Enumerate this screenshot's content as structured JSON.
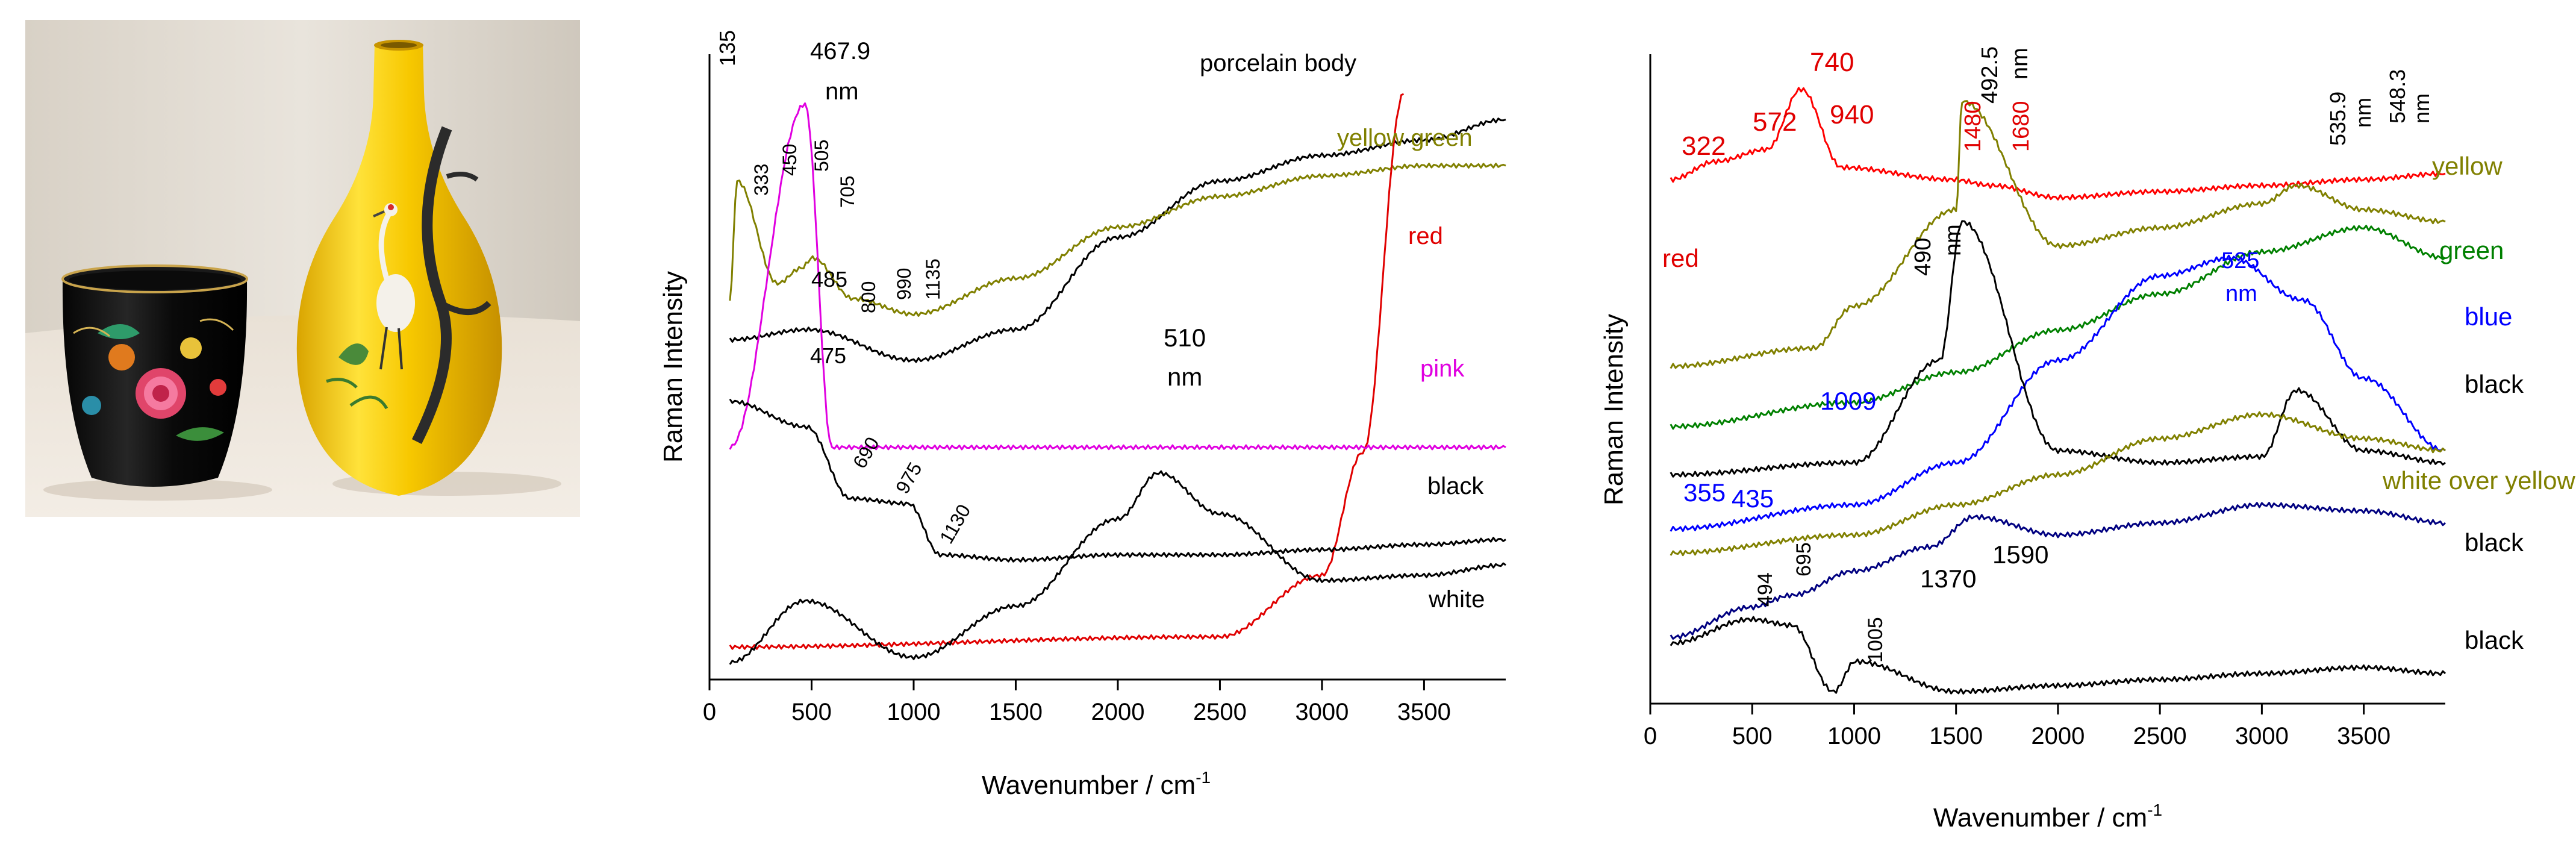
{
  "photo": {
    "description_label": "Photograph of a black enamel cup and a yellow porcelain vase"
  },
  "charts": {
    "left": {
      "ylabel": "Raman Intensity",
      "xlabel": "Wavenumber / cm",
      "xlabel_sup": "-1",
      "ticks": [
        "0",
        "500",
        "1000",
        "1500",
        "2000",
        "2500",
        "3000",
        "3500"
      ],
      "series_labels": {
        "porcelain": "porcelain body",
        "yellowgreen": "yellow green",
        "red": "red",
        "pink": "pink",
        "black": "black",
        "white": "white"
      },
      "peak_labels": {
        "p135": "135",
        "p467": "467.9",
        "p467nm": "nm",
        "p333": "333",
        "p450": "450",
        "p505": "505",
        "p705": "705",
        "p485": "485",
        "p800": "800",
        "p990": "990",
        "p1135": "1135",
        "p510": "510",
        "p510nm": "nm",
        "p475": "475",
        "p690": "690",
        "p975": "975",
        "p1130": "1130"
      }
    },
    "right": {
      "ylabel": "Raman Intensity",
      "xlabel": "Wavenumber / cm",
      "xlabel_sup": "-1",
      "ticks": [
        "0",
        "500",
        "1000",
        "1500",
        "2000",
        "2500",
        "3000",
        "3500"
      ],
      "series_labels": {
        "red": "red",
        "yellow": "yellow",
        "green": "green",
        "blue": "blue",
        "black1": "black",
        "wy": "white over yellow",
        "black2": "black",
        "black3": "black"
      },
      "peak_labels": {
        "p740": "740",
        "p322": "322",
        "p572": "572",
        "p940": "940",
        "p1480": "1480",
        "p1680": "1680",
        "p4925": "492.5",
        "p4925nm": "nm",
        "p5359": "535.9",
        "p5359nm": "nm",
        "p5483": "548.3",
        "p5483nm": "nm",
        "p490": "490",
        "p490nm": "nm",
        "p525": "525",
        "p525nm": "nm",
        "p1009": "1009",
        "p355": "355",
        "p435": "435",
        "p494": "494",
        "p695": "695",
        "p1370": "1370",
        "p1590": "1590",
        "p1005": "1005"
      }
    }
  },
  "chart_data": [
    {
      "type": "line",
      "title": "",
      "xlabel": "Wavenumber / cm-1",
      "ylabel": "Raman Intensity",
      "xlim": [
        0,
        3900
      ],
      "grid": false,
      "series": [
        {
          "name": "porcelain body",
          "color": "#000000",
          "x": [
            100,
            485,
            1000,
            1500,
            2000,
            2500,
            3000,
            3500,
            3900
          ],
          "values": [
            0.64,
            0.66,
            0.6,
            0.66,
            0.84,
            0.95,
            1.0,
            1.03,
            1.07
          ]
        },
        {
          "name": "yellow green",
          "color": "#808000",
          "x": [
            100,
            135,
            333,
            450,
            505,
            705,
            1000,
            1500,
            2000,
            2500,
            3000,
            3500,
            3900
          ],
          "values": [
            0.72,
            0.95,
            0.75,
            0.78,
            0.8,
            0.72,
            0.69,
            0.76,
            0.86,
            0.92,
            0.96,
            0.98,
            0.98
          ]
        },
        {
          "name": "red",
          "color": "#e00000",
          "x": [
            100,
            2500,
            3000,
            3200,
            3400
          ],
          "values": [
            0.04,
            0.06,
            0.18,
            0.42,
            1.12
          ]
        },
        {
          "name": "pink",
          "color": "#e000e0",
          "x": [
            100,
            467.9,
            600,
            3900
          ],
          "values": [
            0.43,
            1.1,
            0.43,
            0.43
          ]
        },
        {
          "name": "black",
          "color": "#000000",
          "x": [
            100,
            475,
            690,
            975,
            1130,
            1500,
            2000,
            2500,
            3000,
            3500,
            3900
          ],
          "values": [
            0.52,
            0.47,
            0.33,
            0.32,
            0.22,
            0.21,
            0.22,
            0.22,
            0.23,
            0.24,
            0.25
          ]
        },
        {
          "name": "white",
          "color": "#000000",
          "x": [
            100,
            467.9,
            1000,
            1500,
            2000,
            2200,
            2500,
            3000,
            3500,
            3900
          ],
          "values": [
            0.01,
            0.13,
            0.02,
            0.12,
            0.29,
            0.38,
            0.3,
            0.17,
            0.18,
            0.2
          ]
        }
      ],
      "annotations": [
        "135",
        "467.9 nm",
        "333",
        "450",
        "505",
        "705",
        "485",
        "800",
        "990",
        "1135",
        "510 nm",
        "475",
        "690",
        "975",
        "1130"
      ]
    },
    {
      "type": "line",
      "title": "",
      "xlabel": "Wavenumber / cm-1",
      "ylabel": "Raman Intensity",
      "xlim": [
        0,
        3900
      ],
      "grid": false,
      "series": [
        {
          "name": "red",
          "color": "#ff0000",
          "x": [
            100,
            322,
            572,
            740,
            940,
            1480,
            1680,
            2000,
            2500,
            3000,
            3500,
            3900
          ],
          "values": [
            0.85,
            0.88,
            0.9,
            1.0,
            0.87,
            0.85,
            0.84,
            0.82,
            0.83,
            0.84,
            0.85,
            0.86
          ]
        },
        {
          "name": "yellow",
          "color": "#808000",
          "x": [
            100,
            800,
            1000,
            1500,
            1530,
            2000,
            2500,
            3000,
            3170,
            3500,
            3900
          ],
          "values": [
            0.54,
            0.57,
            0.64,
            0.8,
            0.98,
            0.74,
            0.77,
            0.81,
            0.84,
            0.8,
            0.78
          ]
        },
        {
          "name": "green",
          "color": "#008000",
          "x": [
            100,
            1000,
            1500,
            2000,
            2500,
            3000,
            3500,
            3900
          ],
          "values": [
            0.44,
            0.48,
            0.53,
            0.6,
            0.66,
            0.73,
            0.77,
            0.72
          ]
        },
        {
          "name": "blue",
          "color": "#0000ff",
          "x": [
            100,
            1000,
            1500,
            2000,
            2500,
            2850,
            3200,
            3500,
            3900
          ],
          "values": [
            0.27,
            0.31,
            0.38,
            0.55,
            0.69,
            0.72,
            0.65,
            0.52,
            0.4
          ]
        },
        {
          "name": "black",
          "color": "#000000",
          "x": [
            100,
            1000,
            1420,
            1530,
            2000,
            2500,
            3000,
            3170,
            3500,
            3900
          ],
          "values": [
            0.36,
            0.38,
            0.55,
            0.78,
            0.4,
            0.38,
            0.39,
            0.5,
            0.4,
            0.38
          ]
        },
        {
          "name": "white over yellow",
          "color": "#808000",
          "x": [
            100,
            1000,
            1500,
            2000,
            2500,
            3000,
            3500,
            3900
          ],
          "values": [
            0.23,
            0.26,
            0.31,
            0.36,
            0.42,
            0.46,
            0.42,
            0.4
          ]
        },
        {
          "name": "black",
          "color": "#000080",
          "x": [
            100,
            494,
            695,
            1000,
            1370,
            1590,
            2000,
            2500,
            3000,
            3500,
            3900
          ],
          "values": [
            0.09,
            0.14,
            0.16,
            0.2,
            0.24,
            0.29,
            0.26,
            0.28,
            0.31,
            0.3,
            0.28
          ]
        },
        {
          "name": "black",
          "color": "#000000",
          "x": [
            100,
            494,
            695,
            900,
            1005,
            1500,
            2000,
            2500,
            3000,
            3500,
            3900
          ],
          "values": [
            0.08,
            0.12,
            0.11,
            0.0,
            0.05,
            0.0,
            0.01,
            0.02,
            0.03,
            0.04,
            0.03
          ]
        }
      ],
      "annotations": [
        "740",
        "322",
        "572",
        "940",
        "1480",
        "1680",
        "492.5 nm",
        "535.9 nm",
        "548.3 nm",
        "490 nm",
        "525 nm",
        "1009",
        "355",
        "435",
        "494",
        "695",
        "1370",
        "1590",
        "1005"
      ]
    }
  ]
}
